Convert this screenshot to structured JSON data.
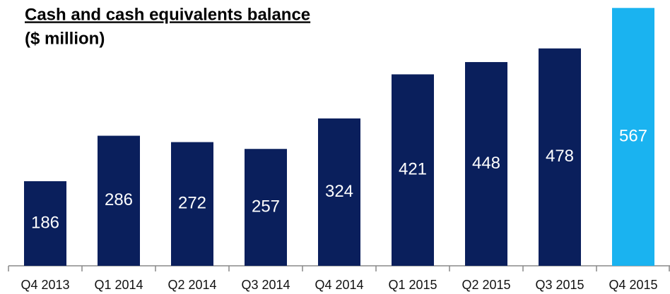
{
  "chart_data": {
    "type": "bar",
    "title": "Cash and cash equivalents balance",
    "subtitle": "($ million)",
    "categories": [
      "Q4 2013",
      "Q1 2014",
      "Q2 2014",
      "Q3 2014",
      "Q4 2014",
      "Q1 2015",
      "Q2 2015",
      "Q3 2015",
      "Q4 2015"
    ],
    "values": [
      186,
      286,
      272,
      257,
      324,
      421,
      448,
      478,
      567
    ],
    "colors": [
      "#0a1f5c",
      "#0a1f5c",
      "#0a1f5c",
      "#0a1f5c",
      "#0a1f5c",
      "#0a1f5c",
      "#0a1f5c",
      "#0a1f5c",
      "#1ab3f0"
    ]
  }
}
